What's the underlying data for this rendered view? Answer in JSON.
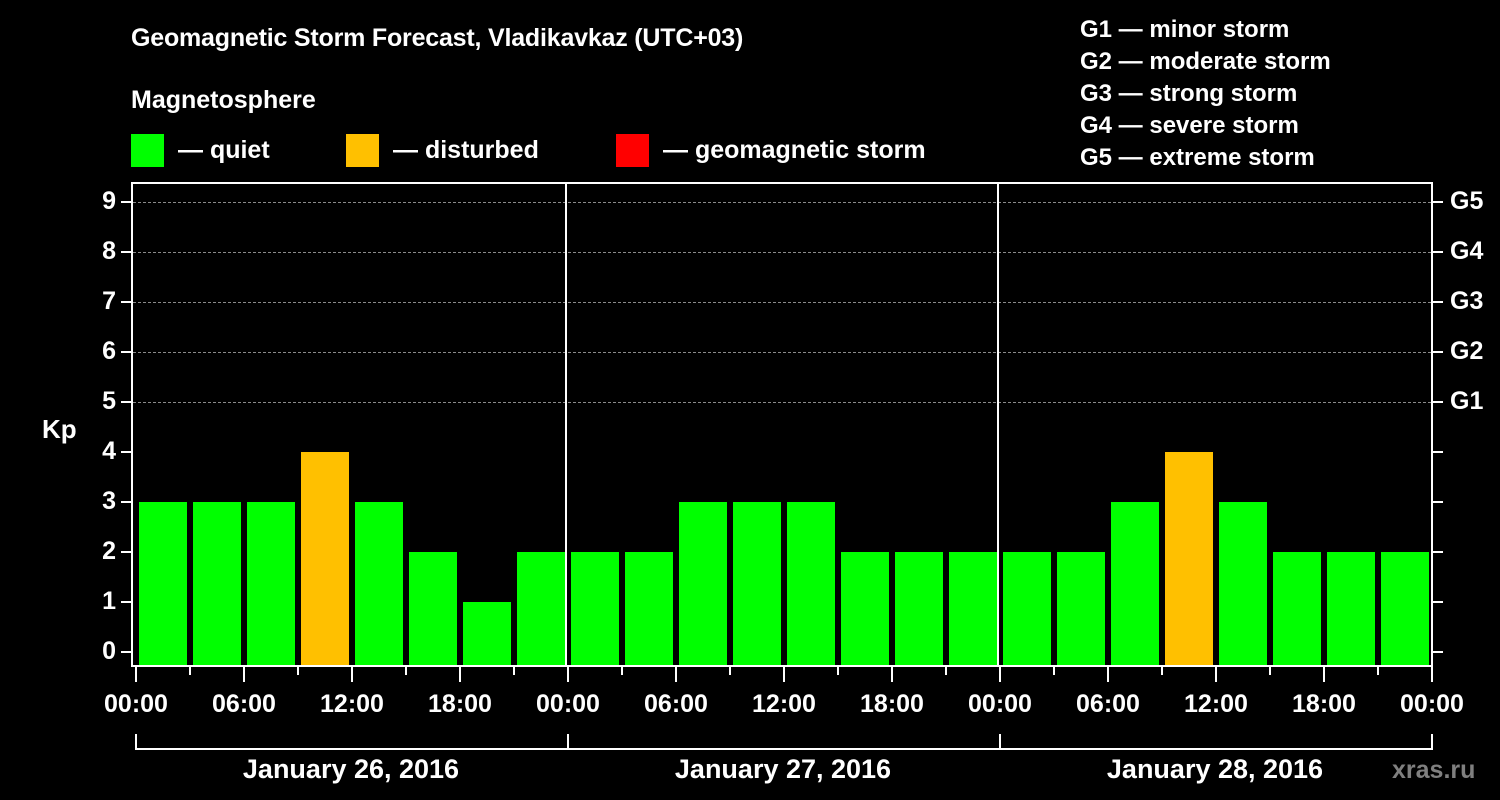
{
  "header": {
    "title": "Geomagnetic Storm Forecast, Vladikavkaz (UTC+03)",
    "subtitle": "Magnetosphere"
  },
  "legend": {
    "items": [
      {
        "label": "— quiet",
        "color": "#00ff00"
      },
      {
        "label": "— disturbed",
        "color": "#ffc000"
      },
      {
        "label": "— geomagnetic storm",
        "color": "#ff0000"
      }
    ]
  },
  "g_scale_legend": [
    "G1 — minor storm",
    "G2 — moderate storm",
    "G3 — strong storm",
    "G4 — severe storm",
    "G5 — extreme storm"
  ],
  "axes": {
    "y_label": "Kp",
    "y_ticks": [
      "0",
      "1",
      "2",
      "3",
      "4",
      "5",
      "6",
      "7",
      "8",
      "9"
    ],
    "y_right_ticks": {
      "5": "G1",
      "6": "G2",
      "7": "G3",
      "8": "G4",
      "9": "G5"
    },
    "x_ticks": [
      "00:00",
      "06:00",
      "12:00",
      "18:00",
      "00:00",
      "06:00",
      "12:00",
      "18:00",
      "00:00",
      "06:00",
      "12:00",
      "18:00",
      "00:00"
    ],
    "dates": [
      "January 26, 2016",
      "January 27, 2016",
      "January 28, 2016"
    ]
  },
  "watermark": "xras.ru",
  "chart_data": {
    "type": "bar",
    "title": "Geomagnetic Storm Forecast, Vladikavkaz (UTC+03)",
    "xlabel": "",
    "ylabel": "Kp",
    "ylim": [
      0,
      9
    ],
    "grid": true,
    "legend_position": "top",
    "categories": [
      "Jan 26 00:00",
      "Jan 26 03:00",
      "Jan 26 06:00",
      "Jan 26 09:00",
      "Jan 26 12:00",
      "Jan 26 15:00",
      "Jan 26 18:00",
      "Jan 26 21:00",
      "Jan 27 00:00",
      "Jan 27 03:00",
      "Jan 27 06:00",
      "Jan 27 09:00",
      "Jan 27 12:00",
      "Jan 27 15:00",
      "Jan 27 18:00",
      "Jan 27 21:00",
      "Jan 28 00:00",
      "Jan 28 03:00",
      "Jan 28 06:00",
      "Jan 28 09:00",
      "Jan 28 12:00",
      "Jan 28 15:00",
      "Jan 28 18:00",
      "Jan 28 21:00"
    ],
    "values": [
      3,
      3,
      3,
      4,
      3,
      2,
      1,
      2,
      2,
      2,
      3,
      3,
      3,
      2,
      2,
      2,
      2,
      2,
      3,
      4,
      3,
      2,
      2,
      2
    ],
    "status": [
      "quiet",
      "quiet",
      "quiet",
      "disturbed",
      "quiet",
      "quiet",
      "quiet",
      "quiet",
      "quiet",
      "quiet",
      "quiet",
      "quiet",
      "quiet",
      "quiet",
      "quiet",
      "quiet",
      "quiet",
      "quiet",
      "quiet",
      "disturbed",
      "quiet",
      "quiet",
      "quiet",
      "quiet"
    ],
    "colors": {
      "quiet": "#00ff00",
      "disturbed": "#ffc000",
      "storm": "#ff0000"
    },
    "right_axis_labels": {
      "5": "G1",
      "6": "G2",
      "7": "G3",
      "8": "G4",
      "9": "G5"
    }
  }
}
